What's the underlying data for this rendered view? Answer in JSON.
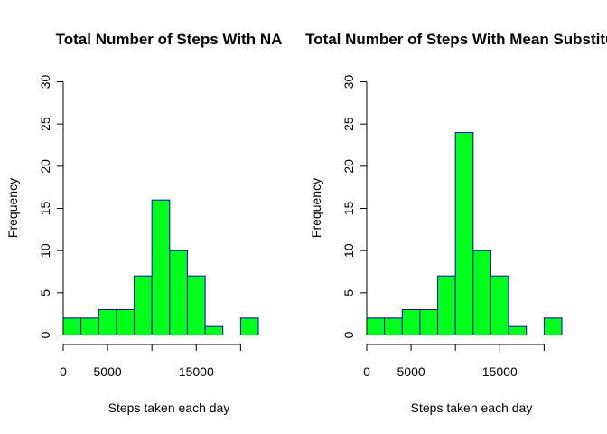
{
  "colors": {
    "bar_fill": "#00ff1a",
    "bar_stroke": "#0000cc",
    "axis": "#000000"
  },
  "chart_data": [
    {
      "type": "bar",
      "title": "Total Number of Steps With NA",
      "xlabel": "Steps taken each day",
      "ylabel": "Frequency",
      "bin_width": 2000,
      "bin_starts": [
        0,
        2000,
        4000,
        6000,
        8000,
        10000,
        12000,
        14000,
        16000,
        18000,
        20000
      ],
      "values": [
        2,
        2,
        3,
        3,
        7,
        16,
        10,
        7,
        1,
        0,
        2
      ],
      "xlim": [
        0,
        22000
      ],
      "ylim": [
        0,
        30
      ],
      "x_ticks": [
        0,
        5000,
        10000,
        15000,
        20000
      ],
      "x_tick_labels": [
        "0",
        "5000",
        "",
        "15000",
        ""
      ],
      "y_ticks": [
        0,
        5,
        10,
        15,
        20,
        25,
        30
      ],
      "y_tick_labels": [
        "0",
        "5",
        "10",
        "15",
        "20",
        "25",
        "30"
      ],
      "grid": false
    },
    {
      "type": "bar",
      "title": "Total Number of Steps With Mean Substituted",
      "xlabel": "Steps taken each day",
      "ylabel": "Frequency",
      "bin_width": 2000,
      "bin_starts": [
        0,
        2000,
        4000,
        6000,
        8000,
        10000,
        12000,
        14000,
        16000,
        18000,
        20000
      ],
      "values": [
        2,
        2,
        3,
        3,
        7,
        24,
        10,
        7,
        1,
        0,
        2
      ],
      "xlim": [
        0,
        22000
      ],
      "ylim": [
        0,
        30
      ],
      "x_ticks": [
        0,
        5000,
        10000,
        15000,
        20000
      ],
      "x_tick_labels": [
        "0",
        "5000",
        "",
        "15000",
        ""
      ],
      "y_ticks": [
        0,
        5,
        10,
        15,
        20,
        25,
        30
      ],
      "y_tick_labels": [
        "0",
        "5",
        "10",
        "15",
        "20",
        "25",
        "30"
      ],
      "grid": false
    }
  ]
}
